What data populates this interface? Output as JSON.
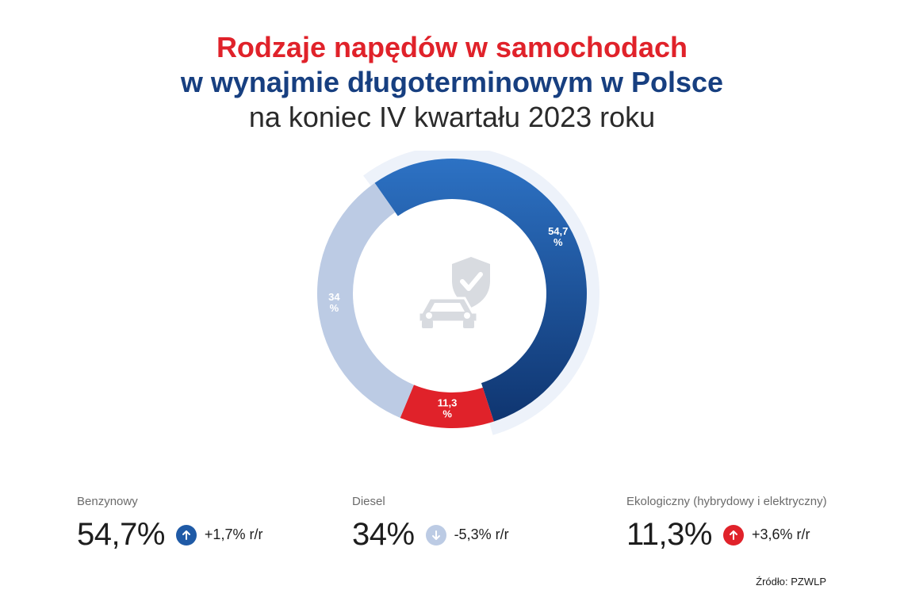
{
  "title": {
    "line1": "Rodzaje napędów w samochodach",
    "line2": "w wynajmie długoterminowym w Polsce",
    "line3": "na koniec IV kwartału 2023 roku"
  },
  "chart_data": {
    "type": "pie",
    "categories": [
      "Benzynowy",
      "Ekologiczny (hybrydowy i elektryczny)",
      "Diesel"
    ],
    "values": [
      54.7,
      11.3,
      34
    ],
    "slice_labels": [
      [
        "54,7",
        "%"
      ],
      [
        "11,3",
        "%"
      ],
      [
        "34",
        "%"
      ]
    ],
    "colors": [
      "#1f5aa6",
      "#e0222a",
      "#bccbe4"
    ],
    "center_icon": "car-shield-check-icon"
  },
  "stats": [
    {
      "label": "Benzynowy",
      "value": "54,7%",
      "change": "+1,7% r/r",
      "direction": "up",
      "color": "#1f5aa6",
      "icon": "arrow-up-icon"
    },
    {
      "label": "Diesel",
      "value": "34%",
      "change": "-5,3% r/r",
      "direction": "down",
      "color": "#bccbe4",
      "icon": "arrow-down-icon"
    },
    {
      "label": "Ekologiczny (hybrydowy i elektryczny)",
      "value": "11,3%",
      "change": "+3,6% r/r",
      "direction": "up",
      "color": "#e0222a",
      "icon": "arrow-up-icon"
    }
  ],
  "source": "Źródło: PZWLP"
}
